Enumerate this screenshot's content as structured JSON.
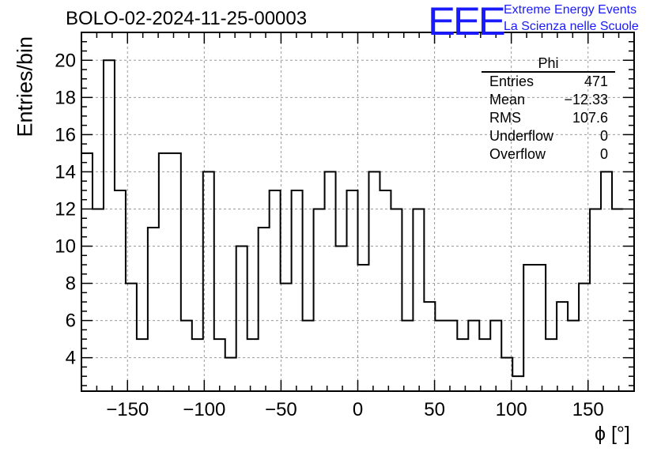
{
  "title": "BOLO-02-2024-11-25-00003",
  "logo": {
    "mark": "EEE",
    "line1": "Extreme Energy Events",
    "line2": "La Scienza nelle Scuole",
    "color": "#1a1aff"
  },
  "stats_box": {
    "name": "Phi",
    "rows": [
      {
        "label": "Entries",
        "value": "471"
      },
      {
        "label": "Mean",
        "value": "−12.33"
      },
      {
        "label": "RMS",
        "value": "107.6"
      },
      {
        "label": "Underflow",
        "value": "0"
      },
      {
        "label": "Overflow",
        "value": "0"
      }
    ]
  },
  "chart_data": {
    "type": "bar",
    "style": "step-histogram",
    "title": "BOLO-02-2024-11-25-00003",
    "xlabel": "ϕ [°]",
    "ylabel": "Entries/bin",
    "xlim": [
      -180,
      180
    ],
    "ylim": [
      2.2,
      21.5
    ],
    "bin_edges_start": -180,
    "bin_width": 7.2,
    "values": [
      15,
      12,
      20,
      13,
      8,
      5,
      11,
      15,
      15,
      6,
      5,
      14,
      5,
      4,
      10,
      5,
      11,
      13,
      8,
      13,
      6,
      12,
      14,
      10,
      13,
      9,
      14,
      13,
      12,
      6,
      12,
      7,
      6,
      6,
      5,
      6,
      5,
      6,
      4,
      3,
      9,
      9,
      5,
      7,
      6,
      8,
      12,
      14,
      12
    ],
    "x_ticks": [
      -150,
      -100,
      -50,
      0,
      50,
      100,
      150
    ],
    "x_tick_labels": [
      "−150",
      "−100",
      "−50",
      "0",
      "50",
      "100",
      "150"
    ],
    "y_ticks": [
      4,
      6,
      8,
      10,
      12,
      14,
      16,
      18,
      20
    ],
    "y_tick_labels": [
      "4",
      "6",
      "8",
      "10",
      "12",
      "14",
      "16",
      "18",
      "20"
    ],
    "grid": true,
    "line_color": "#000000"
  }
}
